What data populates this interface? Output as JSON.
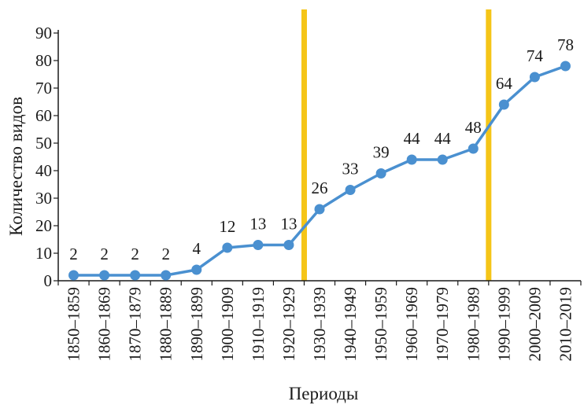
{
  "chart_data": {
    "type": "line",
    "title": "",
    "xlabel": "Периоды",
    "ylabel": "Количество видов",
    "categories": [
      "1850–1859",
      "1860–1869",
      "1870–1879",
      "1880–1889",
      "1890–1899",
      "1900–1909",
      "1910–1919",
      "1920–1929",
      "1930–1939",
      "1940–1949",
      "1950–1959",
      "1960–1969",
      "1970–1979",
      "1980–1989",
      "1990–1999",
      "2000–2009",
      "2010–2019"
    ],
    "values": [
      2,
      2,
      2,
      2,
      4,
      12,
      13,
      13,
      26,
      33,
      39,
      44,
      44,
      48,
      64,
      74,
      78
    ],
    "data_labels": [
      "2",
      "2",
      "2",
      "2",
      "4",
      "12",
      "13",
      "13",
      "26",
      "33",
      "39",
      "44",
      "44",
      "48",
      "64",
      "74",
      "78"
    ],
    "ylim": [
      0,
      90
    ],
    "yticks": [
      0,
      10,
      20,
      30,
      40,
      50,
      60,
      70,
      80,
      90
    ],
    "grid": false,
    "series_color": "#4a90d0",
    "marker_color": "#4a90d0",
    "reference_lines": [
      {
        "position": 7.5,
        "color": "#f5c518"
      },
      {
        "position": 13.5,
        "color": "#f5c518"
      }
    ]
  }
}
